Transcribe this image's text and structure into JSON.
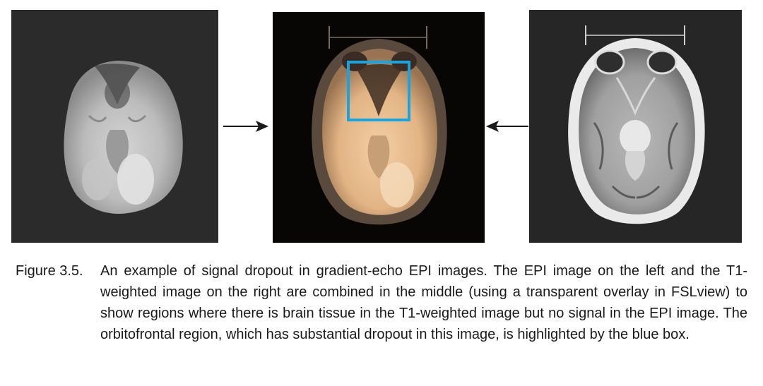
{
  "figure": {
    "label": "Figure 3.5.",
    "caption": "An example of signal dropout in gradient-echo EPI images. The EPI image on the left and the T1-weighted image on the right are combined in the middle (using a transparent overlay in FSLview) to show regions where there is brain tissue in the T1-weighted image but no signal in the EPI image. The orbitofrontal region, which has substantial dropout in this image, is highlighted by the blue box."
  },
  "colors": {
    "highlight_box": "#1aa3dd",
    "arrow": "#1a1a1a",
    "overlay_tint": "#e8b98a"
  }
}
